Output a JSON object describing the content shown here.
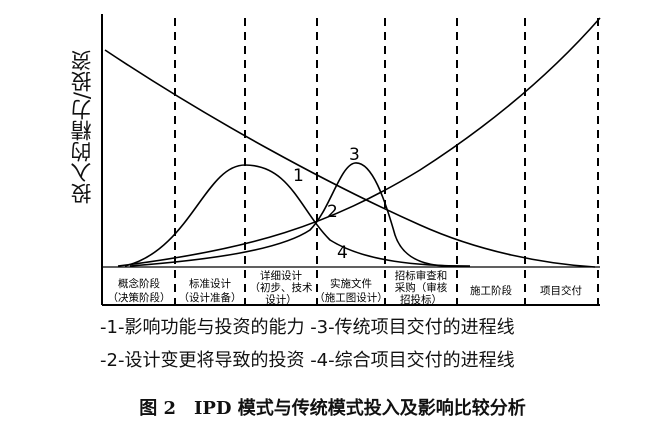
{
  "ylabel": "投入的精力/投资",
  "stages": [
    {
      "lines": [
        "概念阶段",
        "（决策阶段）"
      ]
    },
    {
      "lines": [
        "标准设计",
        "（设计准备）"
      ]
    },
    {
      "lines": [
        "详细设计",
        "（初步、技术",
        "设计）"
      ]
    },
    {
      "lines": [
        "实施文件",
        "（施工图设计）"
      ]
    },
    {
      "lines": [
        "招标审查和",
        "采购（审核",
        "招投标）"
      ]
    },
    {
      "lines": [
        "施工阶段"
      ]
    },
    {
      "lines": [
        "项目交付"
      ]
    }
  ],
  "curve_labels": [
    "1",
    "2",
    "3",
    "4"
  ],
  "legend": {
    "item1": "-1-影响功能与投资的能力",
    "item3": "-3-传统项目交付的进程线",
    "item2": "-2-设计变更将导致的投资",
    "item4": "-4-综合项目交付的进程线"
  },
  "caption": "图 2　IPD 模式与传统模式投入及影响比较分析"
}
